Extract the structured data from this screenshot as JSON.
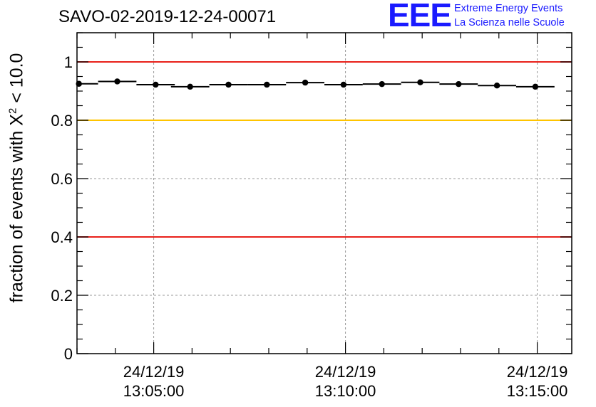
{
  "logo": {
    "mark": "EEE",
    "line1": "Extreme Energy Events",
    "line2": "La Scienza nelle Scuole"
  },
  "colors": {
    "red_line": "#e8201a",
    "yellow_line": "#ffc400",
    "logo_blue": "#1a1aff",
    "grid": "#9a9a9a"
  },
  "chart_data": {
    "type": "scatter",
    "title": "SAVO-02-2019-12-24-00071",
    "ylabel_prefix": "fraction of events with X",
    "ylabel_sup": "2",
    "ylabel_suffix": " < 10.0",
    "ylim": [
      0,
      1.1
    ],
    "yticks": [
      0,
      0.2,
      0.4,
      0.6,
      0.8,
      1
    ],
    "ytick_labels": [
      "0",
      "0.2",
      "0.4",
      "0.6",
      "0.8",
      "1"
    ],
    "xlim_minutes": [
      -2.0,
      10.9
    ],
    "xticks": [
      {
        "minute": 0,
        "date": "24/12/19",
        "time": "13:05:00"
      },
      {
        "minute": 5,
        "date": "24/12/19",
        "time": "13:10:00"
      },
      {
        "minute": 10,
        "date": "24/12/19",
        "time": "13:15:00"
      }
    ],
    "reference_lines": [
      {
        "y": 1.0,
        "color": "red"
      },
      {
        "y": 0.8,
        "color": "yellow"
      },
      {
        "y": 0.4,
        "color": "red"
      }
    ],
    "bin_width_minutes": 1.0,
    "x_minutes": [
      -1.95,
      -0.95,
      0.05,
      0.95,
      1.95,
      2.95,
      3.95,
      4.95,
      5.95,
      6.95,
      7.95,
      8.95,
      9.95
    ],
    "values": [
      0.925,
      0.933,
      0.922,
      0.915,
      0.922,
      0.922,
      0.929,
      0.922,
      0.924,
      0.93,
      0.924,
      0.919,
      0.915
    ]
  }
}
